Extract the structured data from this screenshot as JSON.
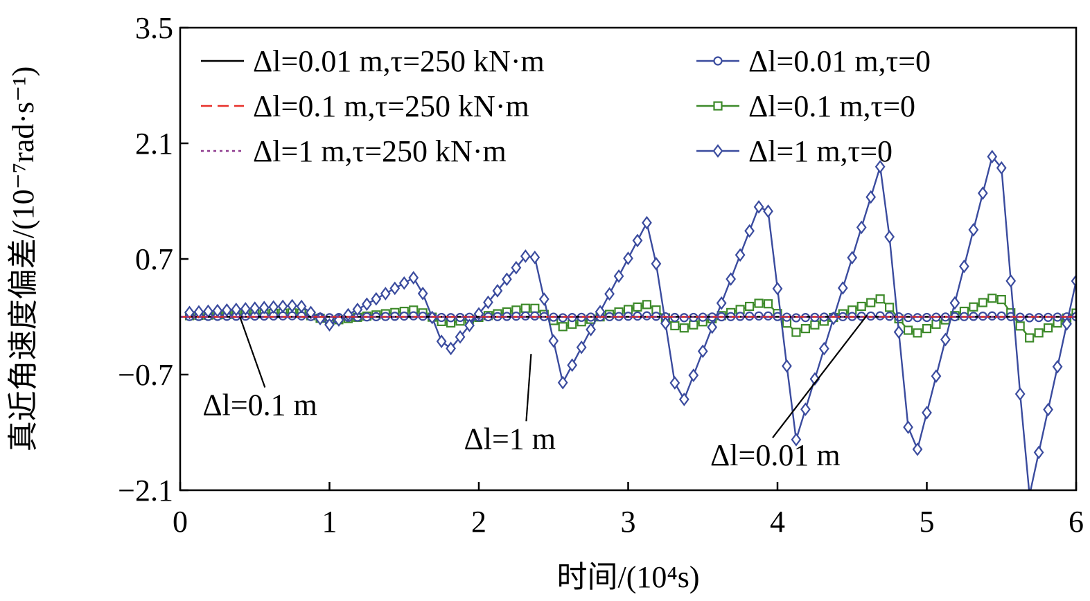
{
  "chart_data": {
    "type": "line",
    "xlabel": "时间/(10⁴s)",
    "ylabel": "真近角速度偏差/(10⁻⁷rad·s⁻¹)",
    "xlim": [
      0,
      6
    ],
    "ylim": [
      -2.1,
      3.5
    ],
    "xticks": [
      0,
      1,
      2,
      3,
      4,
      5,
      6
    ],
    "xtick_labels": [
      "0",
      "1",
      "2",
      "3",
      "4",
      "5",
      "6"
    ],
    "yticks": [
      3.5,
      2.1,
      0.7,
      -0.7,
      -2.1
    ],
    "ytick_labels": [
      "3.5",
      "2.1",
      "0.7",
      "−0.7",
      "−2.1"
    ],
    "grid": false,
    "legend_position": "top",
    "series": [
      {
        "name": "Δl=0.01 m,τ=250 kN·m",
        "color": "#000000",
        "dash": "solid",
        "marker": "none",
        "x": [
          0,
          6
        ],
        "y": [
          0.0,
          0.0
        ]
      },
      {
        "name": "Δl=0.1 m,τ=250 kN·m",
        "color": "#e8312a",
        "dash": "dash",
        "marker": "none",
        "x": [
          0,
          6
        ],
        "y": [
          0.0,
          0.0
        ]
      },
      {
        "name": "Δl=1 m,τ=250 kN·m",
        "color": "#8e3a8e",
        "dash": "dot",
        "marker": "none",
        "x": [
          0,
          6
        ],
        "y": [
          0.0,
          0.0
        ]
      },
      {
        "name": "Δl=0.01 m,τ=0",
        "color": "#3a4b9e",
        "dash": "solid",
        "marker": "circle",
        "period": 0.78,
        "peak_t": 0.8,
        "base_amp": 0.012,
        "amp_growth": 0.0,
        "y_offset": 0.0
      },
      {
        "name": "Δl=0.1 m,τ=0",
        "color": "#3d8a2a",
        "dash": "solid",
        "marker": "square",
        "period": 0.78,
        "peak_t": 0.8,
        "base_amp": 0.05,
        "amp_growth": 0.035,
        "y_offset": 0.0
      },
      {
        "name": "Δl=1 m,τ=0",
        "color": "#3a4b9e",
        "dash": "solid",
        "marker": "diamond",
        "period": 0.78,
        "peak_t": 0.8,
        "base_amp": 0.12,
        "amp_growth": 0.35,
        "y_offset": 0.02
      }
    ],
    "annotations": [
      {
        "text": "Δl=0.1 m",
        "label_x": 0.15,
        "label_y": -1.19,
        "point_x": 0.4,
        "point_y": 0.0
      },
      {
        "text": "Δl=1 m",
        "label_x": 1.9,
        "label_y": -1.6,
        "point_x": 2.35,
        "point_y": -0.45
      },
      {
        "text": "Δl=0.01 m",
        "label_x": 3.55,
        "label_y": -1.8,
        "point_x": 4.6,
        "point_y": 0.02
      }
    ]
  }
}
